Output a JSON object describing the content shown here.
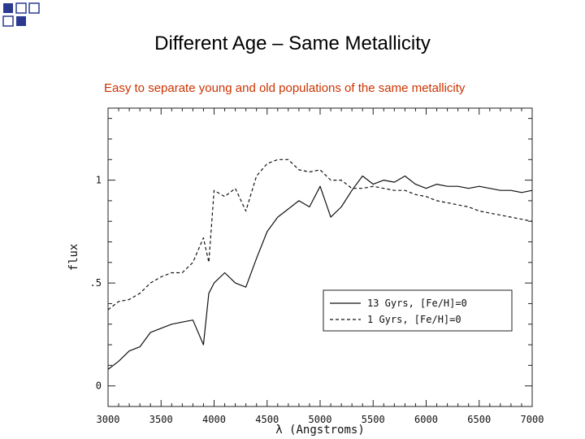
{
  "slide": {
    "title": "Different Age – Same Metallicity",
    "subtitle": "Easy to separate young and old populations of the same metallicity",
    "accent_color": "#cc3300",
    "decor_color": "#2b3a8f"
  },
  "chart_data": {
    "type": "line",
    "title": "",
    "xlabel": "λ (Angstroms)",
    "ylabel": "flux",
    "xlim": [
      3000,
      7000
    ],
    "ylim": [
      -0.1,
      1.35
    ],
    "x_ticks": [
      "3000",
      "3500",
      "4000",
      "4500",
      "5000",
      "5500",
      "6000",
      "6500",
      "7000"
    ],
    "y_ticks": [
      "0",
      ".5",
      "1"
    ],
    "y_tick_values": [
      0,
      0.5,
      1
    ],
    "legend_position": "lower-right",
    "grid": false,
    "series": [
      {
        "name": "13 Gyrs, [Fe/H]=0",
        "style": "solid",
        "points": [
          [
            3000,
            0.08
          ],
          [
            3100,
            0.12
          ],
          [
            3200,
            0.17
          ],
          [
            3300,
            0.19
          ],
          [
            3400,
            0.26
          ],
          [
            3500,
            0.28
          ],
          [
            3600,
            0.3
          ],
          [
            3700,
            0.31
          ],
          [
            3800,
            0.32
          ],
          [
            3900,
            0.2
          ],
          [
            3950,
            0.45
          ],
          [
            4000,
            0.5
          ],
          [
            4100,
            0.55
          ],
          [
            4200,
            0.5
          ],
          [
            4300,
            0.48
          ],
          [
            4400,
            0.62
          ],
          [
            4500,
            0.75
          ],
          [
            4600,
            0.82
          ],
          [
            4700,
            0.86
          ],
          [
            4800,
            0.9
          ],
          [
            4900,
            0.87
          ],
          [
            5000,
            0.97
          ],
          [
            5100,
            0.82
          ],
          [
            5200,
            0.87
          ],
          [
            5300,
            0.95
          ],
          [
            5400,
            1.02
          ],
          [
            5500,
            0.98
          ],
          [
            5600,
            1.0
          ],
          [
            5700,
            0.99
          ],
          [
            5800,
            1.02
          ],
          [
            5900,
            0.98
          ],
          [
            6000,
            0.96
          ],
          [
            6100,
            0.98
          ],
          [
            6200,
            0.97
          ],
          [
            6300,
            0.97
          ],
          [
            6400,
            0.96
          ],
          [
            6500,
            0.97
          ],
          [
            6600,
            0.96
          ],
          [
            6700,
            0.95
          ],
          [
            6800,
            0.95
          ],
          [
            6900,
            0.94
          ],
          [
            7000,
            0.95
          ]
        ]
      },
      {
        "name": "1 Gyrs, [Fe/H]=0",
        "style": "dashed",
        "points": [
          [
            3000,
            0.37
          ],
          [
            3100,
            0.41
          ],
          [
            3200,
            0.42
          ],
          [
            3300,
            0.45
          ],
          [
            3400,
            0.5
          ],
          [
            3500,
            0.53
          ],
          [
            3600,
            0.55
          ],
          [
            3700,
            0.55
          ],
          [
            3800,
            0.6
          ],
          [
            3900,
            0.72
          ],
          [
            3950,
            0.6
          ],
          [
            4000,
            0.95
          ],
          [
            4100,
            0.92
          ],
          [
            4200,
            0.96
          ],
          [
            4300,
            0.85
          ],
          [
            4400,
            1.02
          ],
          [
            4500,
            1.08
          ],
          [
            4600,
            1.1
          ],
          [
            4700,
            1.1
          ],
          [
            4800,
            1.05
          ],
          [
            4900,
            1.04
          ],
          [
            5000,
            1.05
          ],
          [
            5100,
            1.0
          ],
          [
            5200,
            1.0
          ],
          [
            5300,
            0.96
          ],
          [
            5400,
            0.96
          ],
          [
            5500,
            0.97
          ],
          [
            5600,
            0.96
          ],
          [
            5700,
            0.95
          ],
          [
            5800,
            0.95
          ],
          [
            5900,
            0.93
          ],
          [
            6000,
            0.92
          ],
          [
            6100,
            0.9
          ],
          [
            6200,
            0.89
          ],
          [
            6300,
            0.88
          ],
          [
            6400,
            0.87
          ],
          [
            6500,
            0.85
          ],
          [
            6600,
            0.84
          ],
          [
            6700,
            0.83
          ],
          [
            6800,
            0.82
          ],
          [
            6900,
            0.81
          ],
          [
            7000,
            0.8
          ]
        ]
      }
    ]
  }
}
